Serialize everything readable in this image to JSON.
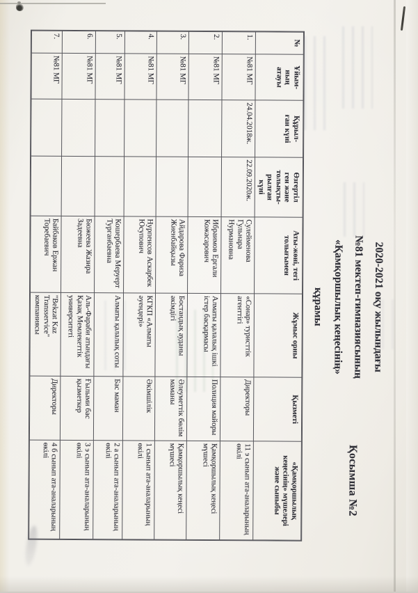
{
  "document": {
    "annex_label": "Қосымша №2",
    "title_lines": [
      "2020-2021 оқу жылындағы",
      "№81 мектеп-гимназиясының",
      "«Қамқоршылық кеңесінің»",
      "құрамы"
    ]
  },
  "table": {
    "headers": [
      "№",
      "Ұйым-\nның\nатауы",
      "Құрыл-\nған күні",
      "Өзгертіл\nген және\nтолықты-\nрылған\nкүні",
      "Аты-жөні, тегі\nтолығымен",
      "Жұмыс орны",
      "Қызметі",
      "«Қамқоршылық\nкеңесінің» мүшелері\nжәне сыныбы"
    ],
    "rows": [
      [
        "1.",
        "№81 МГ",
        "24.04.2018ж.",
        "22.09.2020ж.",
        "Сулейменова Гульнара Нурмановна",
        "«Сонар» туристтік агенттігі",
        "Директоры",
        "11 э сынып ата-аналарының өкілі"
      ],
      [
        "2.",
        "№81 МГ",
        "",
        "",
        "Ибраимов Ергали Кожасарович",
        "Алматы қалалық ішкі істер басқармасы",
        "Полиция майоры",
        "Қамқоршылық кеңесі мүшесі"
      ],
      [
        "3.",
        "№81 МГ",
        "",
        "",
        "Айдарова Фариза Жиенбайқызы",
        "Бостандық ауданы әкімдігі",
        "Әлеуметтік бөлім маманы",
        "Қамқоршылық кеңесі мүшесі"
      ],
      [
        "4.",
        "№81 МГ",
        "",
        "",
        "Нурпеисов Аскарбек Юсупович",
        "КГКП «Алматы әуендері»",
        "Әкімшілік",
        "1 сынып ата-аналарының өкілі"
      ],
      [
        "5.",
        "№81 МГ",
        "",
        "",
        "Кошербаева Меруерт Турганбаевна",
        "Алматы қалалық соты",
        "Бас маман",
        "2 а сынып ата-аналарының өкілі"
      ],
      [
        "6.",
        "№81 МГ",
        "",
        "",
        "Бюжеева Жазира Задеевна",
        "Аль-Фараби атындағы Қазақ Мемлекеттік университеті",
        "Ғылыми бас қызметкер",
        "3 э сынып ата-аналарының өкілі"
      ],
      [
        "7.",
        "№81 МГ",
        "",
        "",
        "Байбаков Ержан Торебаевич",
        "\"Bekzat Kaz Transservice\" компаниясы",
        "Директоры",
        "4 б сынып ата-аналарының өкілі"
      ]
    ]
  },
  "colors": {
    "paper": "#f1efe9",
    "ink": "#2e2e36",
    "table_border": "#54545a"
  }
}
